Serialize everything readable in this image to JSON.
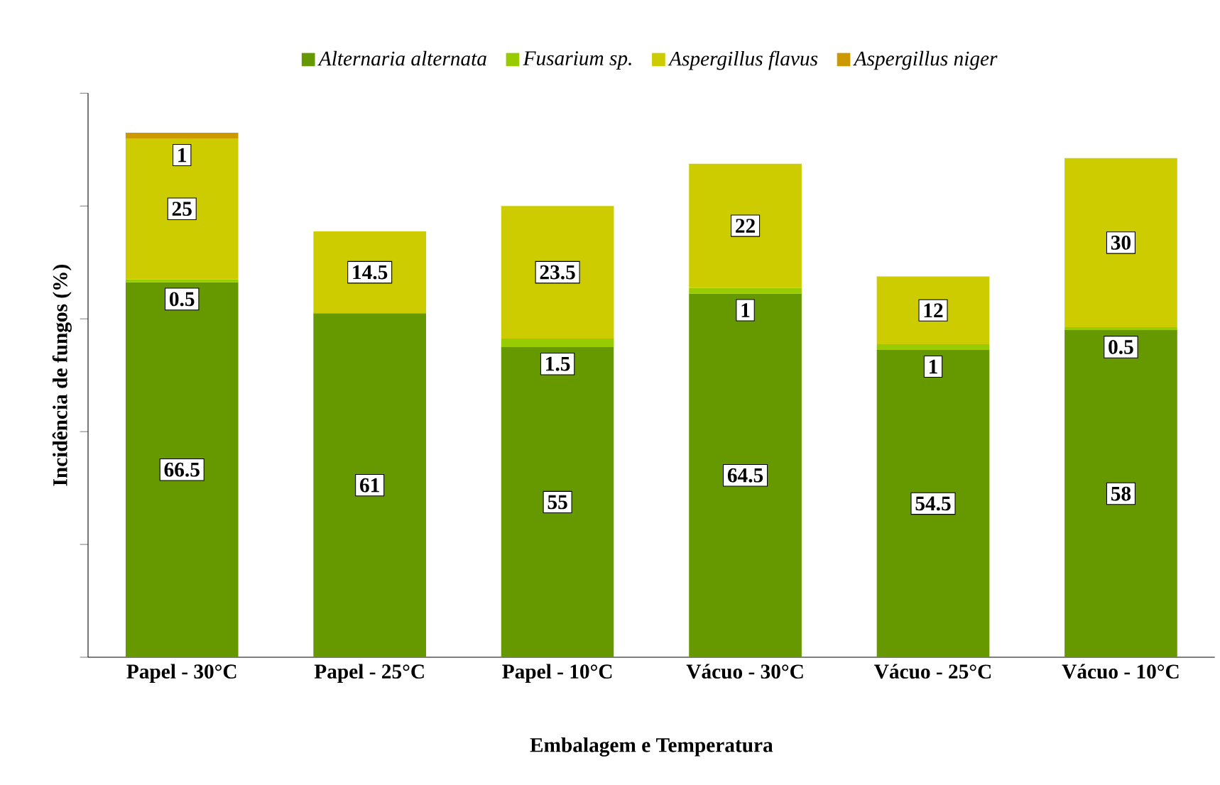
{
  "chart_data": {
    "type": "bar",
    "stacked": true,
    "xlabel": "Embalagem e Temperatura",
    "ylabel": "Incidência de fungos (%)",
    "categories": [
      "Papel - 30°C",
      "Papel - 25°C",
      "Papel - 10°C",
      "Vácuo - 30°C",
      "Vácuo - 25°C",
      "Vácuo - 10°C"
    ],
    "series": [
      {
        "name": "Alternaria alternata",
        "color": "#669900",
        "values": [
          66.5,
          61,
          55,
          64.5,
          54.5,
          58
        ]
      },
      {
        "name": "Fusarium sp.",
        "color": "#99cc00",
        "values": [
          0.5,
          null,
          1.5,
          1,
          1,
          0.5
        ]
      },
      {
        "name": "Aspergillus flavus",
        "color": "#cccc00",
        "values": [
          25,
          14.5,
          23.5,
          22,
          12,
          30
        ]
      },
      {
        "name": "Aspergillus niger",
        "color": "#cc9900",
        "values": [
          1,
          null,
          null,
          null,
          null,
          null
        ]
      }
    ],
    "ylim": [
      0,
      100
    ],
    "yticks": [
      {
        "value": 0,
        "label": null
      },
      {
        "value": 20,
        "label": null
      },
      {
        "value": 40,
        "label": null
      },
      {
        "value": 60,
        "label": null
      },
      {
        "value": 80,
        "label": null
      },
      {
        "value": 100,
        "label": null
      }
    ],
    "tick_labels": "x",
    "data_labels": true,
    "legend": "top",
    "grid": false
  }
}
